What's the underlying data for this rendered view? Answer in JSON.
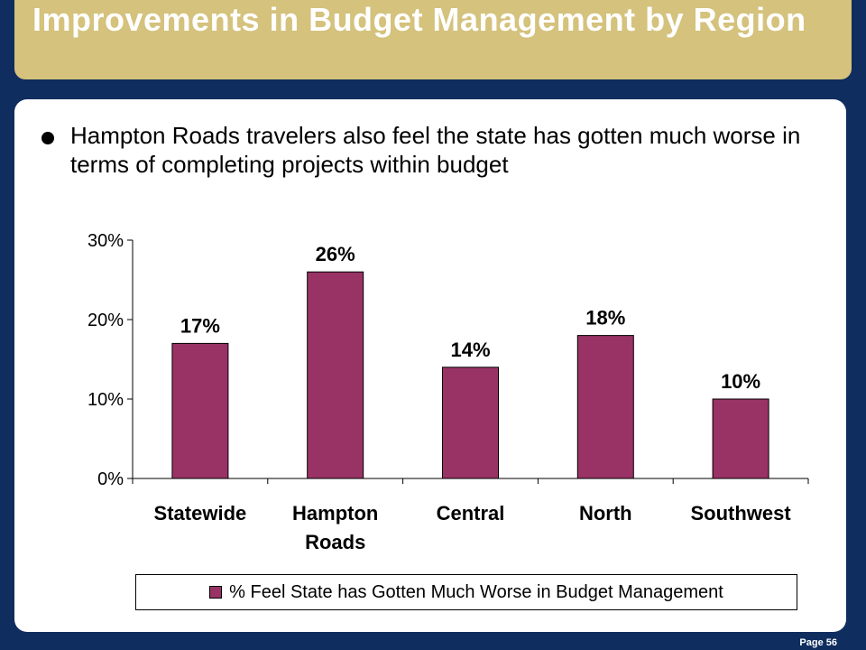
{
  "slide": {
    "title": "Improvements in Budget Management by Region",
    "bullet": "Hampton Roads travelers also feel the state has gotten much worse in terms of completing projects within budget",
    "page_label": "Page 56"
  },
  "colors": {
    "bar": "#993366",
    "title_bar": "#d4c27d",
    "background": "#0f2d5e"
  },
  "chart_data": {
    "type": "bar",
    "categories": [
      "Statewide",
      "Hampton Roads",
      "Central",
      "North",
      "Southwest"
    ],
    "category_lines": [
      [
        "Statewide"
      ],
      [
        "Hampton",
        "Roads"
      ],
      [
        "Central"
      ],
      [
        "North"
      ],
      [
        "Southwest"
      ]
    ],
    "series": [
      {
        "name": "% Feel State has Gotten Much Worse in Budget Management",
        "values": [
          17,
          26,
          14,
          18,
          10
        ]
      }
    ],
    "data_labels": [
      "17%",
      "26%",
      "14%",
      "18%",
      "10%"
    ],
    "yticks": [
      0,
      10,
      20,
      30
    ],
    "ytick_labels": [
      "0%",
      "10%",
      "20%",
      "30%"
    ],
    "ylim": [
      0,
      30
    ],
    "grid": false,
    "legend_position": "bottom"
  }
}
